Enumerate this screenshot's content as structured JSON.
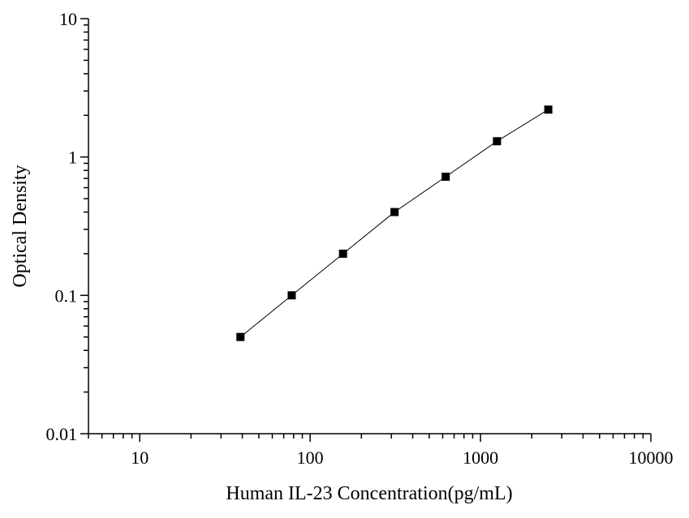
{
  "chart_data": {
    "type": "scatter",
    "title": "",
    "xlabel": "Human IL-23 Concentration(pg/mL)",
    "ylabel": "Optical Density",
    "x_scale": "log",
    "y_scale": "log",
    "xlim": [
      5,
      10000
    ],
    "ylim": [
      0.01,
      10
    ],
    "x_ticks": [
      {
        "value": 10,
        "label": "10"
      },
      {
        "value": 100,
        "label": "100"
      },
      {
        "value": 1000,
        "label": "1000"
      },
      {
        "value": 10000,
        "label": "10000"
      }
    ],
    "y_ticks": [
      {
        "value": 0.01,
        "label": "0.01"
      },
      {
        "value": 0.1,
        "label": "0.1"
      },
      {
        "value": 1,
        "label": "1"
      },
      {
        "value": 10,
        "label": "10"
      }
    ],
    "grid": false,
    "series": [
      {
        "marker": "square",
        "line": true,
        "color": "#000000",
        "x": [
          39,
          78,
          156,
          313,
          625,
          1250,
          2500
        ],
        "y": [
          0.05,
          0.1,
          0.2,
          0.4,
          0.72,
          1.3,
          2.2
        ]
      }
    ]
  }
}
